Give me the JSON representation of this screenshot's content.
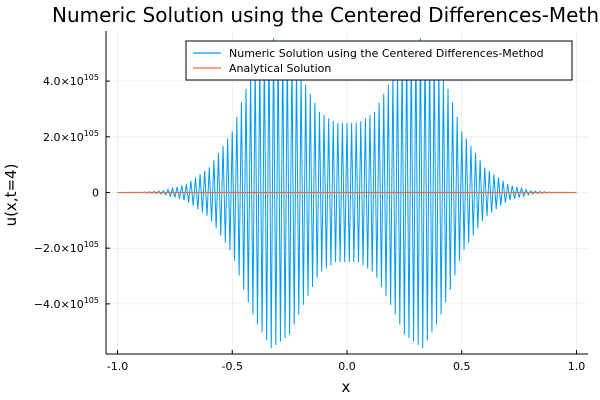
{
  "chart_data": {
    "type": "line",
    "title": "Numeric Solution using the Centered Differences-Method",
    "xlabel": "x",
    "ylabel": "u(x,t=4)",
    "xlim": [
      -1.05,
      1.05
    ],
    "ylim": [
      -5.8e+105,
      5.8e+105
    ],
    "x_ticks": [
      -1.0,
      -0.5,
      0.0,
      0.5,
      1.0
    ],
    "x_tick_labels": [
      "-1.0",
      "-0.5",
      "0.0",
      "0.5",
      "1.0"
    ],
    "y_ticks": [
      {
        "value": 4e+105,
        "mantissa": "4.0",
        "base": "×10",
        "exp": "105"
      },
      {
        "value": 2e+105,
        "mantissa": "2.0",
        "base": "×10",
        "exp": "105"
      },
      {
        "value": 0,
        "mantissa": "0",
        "base": "",
        "exp": ""
      },
      {
        "value": -2e+105,
        "mantissa": "−2.0",
        "base": "×10",
        "exp": "105"
      },
      {
        "value": -4e+105,
        "mantissa": "−4.0",
        "base": "×10",
        "exp": "105"
      }
    ],
    "grid": true,
    "legend_position": "top-right",
    "series": [
      {
        "name": "Numeric Solution using the Centered Differences-Method",
        "color": "#009AF9",
        "style": "sawtooth oscillation (alternating sign at each grid point)",
        "n_points": 201,
        "x_range": [
          -1.0,
          1.0
        ],
        "envelope": {
          "x": [
            -1.0,
            -0.9,
            -0.8,
            -0.7,
            -0.6,
            -0.5,
            -0.45,
            -0.4,
            -0.33,
            -0.25,
            -0.2,
            -0.12,
            -0.05,
            0.0,
            0.05,
            0.12,
            0.2,
            0.25,
            0.33,
            0.4,
            0.45,
            0.5,
            0.6,
            0.7,
            0.8,
            0.9,
            1.0
          ],
          "amp": [
            0,
            5e+102,
            6e+103,
            3e+104,
            9e+104,
            2.2e+105,
            3.5e+105,
            4.6e+105,
            5.6e+105,
            5.1e+105,
            4.2e+105,
            2.9e+105,
            2.5e+105,
            2.5e+105,
            2.5e+105,
            2.9e+105,
            4.2e+105,
            5.1e+105,
            5.6e+105,
            4.6e+105,
            3.5e+105,
            2.2e+105,
            9e+104,
            3e+104,
            6e+103,
            5e+102,
            0
          ]
        }
      },
      {
        "name": "Analytical Solution",
        "color": "#E26F46",
        "x": [
          -1.0,
          1.0
        ],
        "y": [
          0,
          0
        ]
      }
    ]
  }
}
